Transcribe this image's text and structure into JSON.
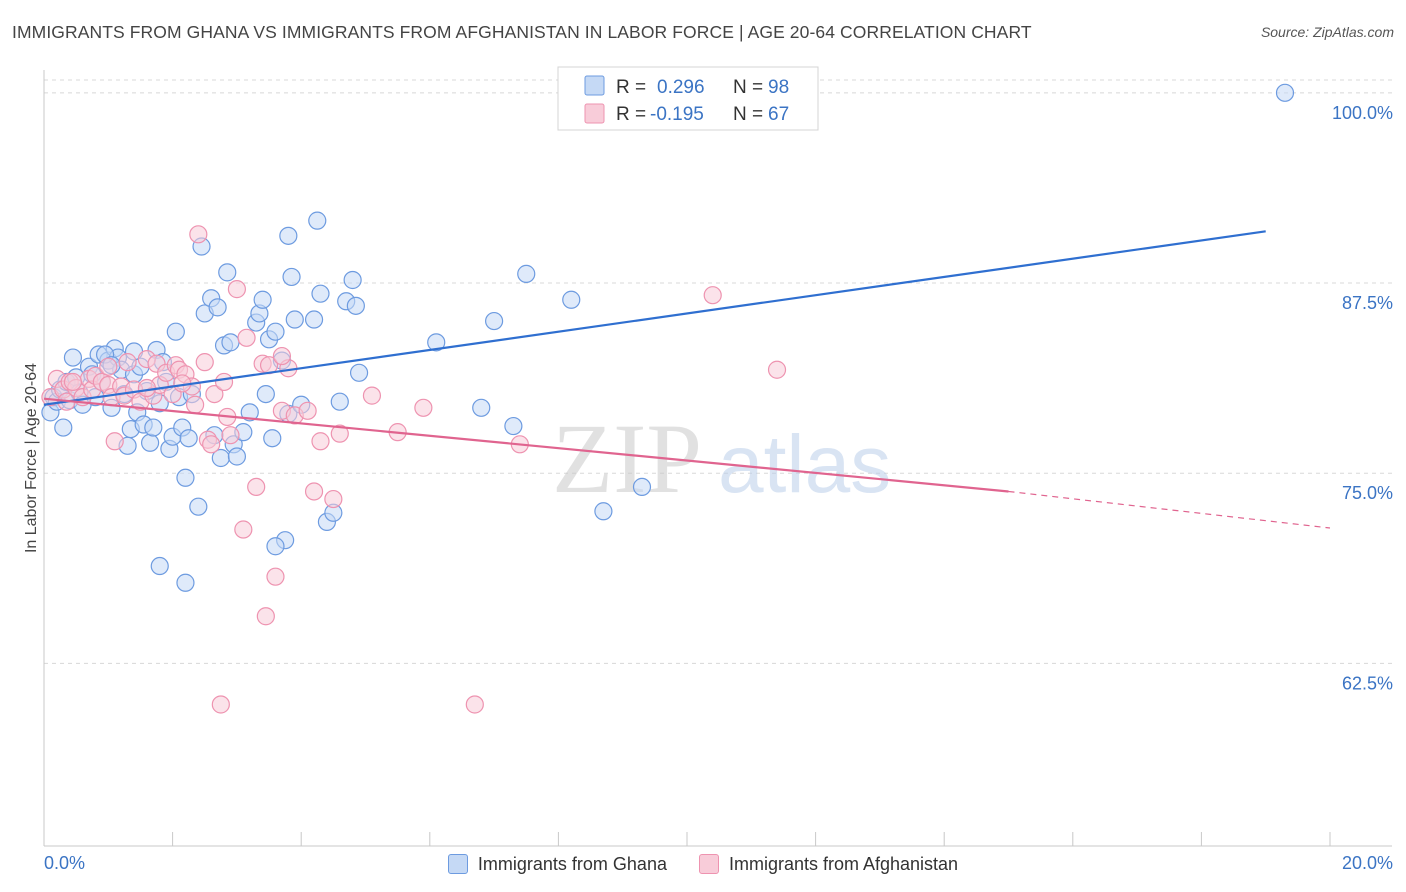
{
  "header": {
    "title": "IMMIGRANTS FROM GHANA VS IMMIGRANTS FROM AFGHANISTAN IN LABOR FORCE | AGE 20-64 CORRELATION CHART",
    "source": "Source: ZipAtlas.com"
  },
  "watermark": {
    "zip": "ZIP",
    "atlas": "atlas"
  },
  "stats": {
    "ghana": {
      "r_label": "R =",
      "r_value": "0.296",
      "n_label": "N =",
      "n_value": "98"
    },
    "afghanistan": {
      "r_label": "R =",
      "r_value": "-0.195",
      "n_label": "N =",
      "n_value": "67"
    }
  },
  "legend": {
    "ghana": "Immigrants from Ghana",
    "afghanistan": "Immigrants from Afghanistan"
  },
  "colors": {
    "ghana_fill": "#c5d9f5",
    "ghana_stroke": "#6d9be0",
    "ghana_line": "#2f6fd0",
    "afghanistan_fill": "#f8ccd9",
    "afghanistan_stroke": "#ee93b0",
    "afghanistan_line": "#e0648f",
    "tick_label": "#3b74c4",
    "grid": "#d8d8d8"
  },
  "chart_data": {
    "type": "scatter",
    "title": "IMMIGRANTS FROM GHANA VS IMMIGRANTS FROM AFGHANISTAN IN LABOR FORCE | AGE 20-64 CORRELATION CHART",
    "xlabel": "",
    "ylabel": "In Labor Force | Age 20-64",
    "xlim": [
      0,
      20
    ],
    "ylim": [
      50.5,
      101.5
    ],
    "x_tick_labels": [
      "0.0%",
      "20.0%"
    ],
    "y_ticks": [
      62.5,
      75.0,
      87.5,
      100.0
    ],
    "y_tick_labels": [
      "62.5%",
      "75.0%",
      "87.5%",
      "100.0%"
    ],
    "grid": true,
    "legend_position": "bottom",
    "series": [
      {
        "name": "Immigrants from Ghana",
        "r": 0.296,
        "n": 98,
        "trend": {
          "x": [
            0.0,
            19.0
          ],
          "y": [
            79.5,
            90.9
          ]
        },
        "points": [
          [
            0.1,
            79.0
          ],
          [
            0.15,
            80.0
          ],
          [
            0.2,
            79.7
          ],
          [
            0.25,
            80.5
          ],
          [
            0.3,
            78.0
          ],
          [
            0.35,
            81.0
          ],
          [
            0.4,
            79.8
          ],
          [
            0.45,
            82.6
          ],
          [
            0.5,
            81.3
          ],
          [
            0.55,
            80.3
          ],
          [
            0.6,
            79.5
          ],
          [
            0.7,
            82.0
          ],
          [
            0.75,
            81.5
          ],
          [
            0.8,
            80.0
          ],
          [
            0.85,
            82.8
          ],
          [
            0.9,
            81.0
          ],
          [
            1.0,
            82.4
          ],
          [
            1.05,
            79.3
          ],
          [
            1.1,
            83.2
          ],
          [
            1.15,
            82.6
          ],
          [
            1.2,
            81.8
          ],
          [
            1.25,
            80.2
          ],
          [
            1.3,
            76.8
          ],
          [
            1.35,
            77.9
          ],
          [
            1.4,
            81.5
          ],
          [
            1.45,
            79.0
          ],
          [
            1.5,
            82.0
          ],
          [
            1.55,
            78.2
          ],
          [
            1.6,
            80.4
          ],
          [
            1.65,
            77.0
          ],
          [
            1.7,
            78.0
          ],
          [
            1.75,
            83.1
          ],
          [
            1.8,
            79.6
          ],
          [
            1.85,
            82.3
          ],
          [
            1.9,
            81.0
          ],
          [
            1.95,
            76.6
          ],
          [
            2.0,
            77.4
          ],
          [
            2.05,
            84.3
          ],
          [
            2.1,
            80.0
          ],
          [
            2.15,
            78.0
          ],
          [
            2.2,
            74.7
          ],
          [
            2.25,
            77.3
          ],
          [
            2.3,
            80.2
          ],
          [
            2.4,
            72.8
          ],
          [
            2.45,
            89.9
          ],
          [
            2.5,
            85.5
          ],
          [
            2.6,
            86.5
          ],
          [
            2.65,
            77.5
          ],
          [
            2.7,
            85.9
          ],
          [
            2.75,
            76.0
          ],
          [
            2.8,
            83.4
          ],
          [
            2.85,
            88.2
          ],
          [
            2.9,
            83.6
          ],
          [
            2.95,
            76.9
          ],
          [
            3.0,
            76.1
          ],
          [
            3.1,
            77.7
          ],
          [
            3.2,
            79.0
          ],
          [
            3.3,
            84.9
          ],
          [
            3.35,
            85.5
          ],
          [
            3.4,
            86.4
          ],
          [
            3.45,
            80.2
          ],
          [
            3.5,
            83.8
          ],
          [
            3.55,
            77.3
          ],
          [
            3.6,
            84.3
          ],
          [
            3.7,
            82.4
          ],
          [
            3.75,
            70.6
          ],
          [
            3.8,
            78.9
          ],
          [
            3.85,
            87.9
          ],
          [
            3.9,
            85.1
          ],
          [
            4.0,
            79.5
          ],
          [
            4.2,
            85.1
          ],
          [
            4.25,
            91.6
          ],
          [
            4.3,
            86.8
          ],
          [
            4.4,
            71.8
          ],
          [
            4.5,
            72.4
          ],
          [
            4.6,
            79.7
          ],
          [
            4.7,
            86.3
          ],
          [
            4.8,
            87.7
          ],
          [
            4.85,
            86.0
          ],
          [
            4.9,
            81.6
          ],
          [
            6.1,
            83.6
          ],
          [
            6.8,
            79.3
          ],
          [
            7.0,
            85.0
          ],
          [
            7.3,
            78.1
          ],
          [
            7.5,
            88.1
          ],
          [
            8.2,
            86.4
          ],
          [
            8.7,
            72.5
          ],
          [
            9.3,
            74.1
          ],
          [
            1.8,
            68.9
          ],
          [
            2.2,
            67.8
          ],
          [
            3.6,
            70.2
          ],
          [
            1.4,
            83.0
          ],
          [
            0.95,
            82.8
          ],
          [
            1.05,
            82.1
          ],
          [
            19.3,
            100.0
          ],
          [
            3.8,
            90.6
          ]
        ]
      },
      {
        "name": "Immigrants from Afghanistan",
        "r": -0.195,
        "n": 67,
        "trend": {
          "x": [
            0.0,
            15.0
          ],
          "y": [
            79.9,
            73.8
          ]
        },
        "trend_dashed": {
          "x": [
            15.0,
            20.0
          ],
          "y": [
            73.8,
            71.4
          ]
        },
        "points": [
          [
            0.1,
            80.0
          ],
          [
            0.2,
            81.2
          ],
          [
            0.3,
            80.5
          ],
          [
            0.35,
            79.7
          ],
          [
            0.4,
            81.0
          ],
          [
            0.5,
            80.6
          ],
          [
            0.6,
            80.0
          ],
          [
            0.7,
            81.2
          ],
          [
            0.75,
            80.5
          ],
          [
            0.8,
            81.4
          ],
          [
            0.9,
            81.0
          ],
          [
            1.0,
            80.8
          ],
          [
            1.05,
            80.0
          ],
          [
            1.1,
            77.1
          ],
          [
            1.2,
            80.7
          ],
          [
            1.25,
            80.1
          ],
          [
            1.3,
            82.3
          ],
          [
            1.4,
            80.5
          ],
          [
            1.5,
            79.7
          ],
          [
            1.6,
            82.5
          ],
          [
            1.7,
            80.1
          ],
          [
            1.75,
            82.2
          ],
          [
            1.8,
            80.8
          ],
          [
            1.9,
            81.6
          ],
          [
            2.0,
            80.2
          ],
          [
            2.05,
            82.1
          ],
          [
            2.1,
            81.8
          ],
          [
            2.2,
            81.5
          ],
          [
            2.3,
            80.7
          ],
          [
            2.35,
            79.5
          ],
          [
            2.4,
            90.7
          ],
          [
            2.5,
            82.3
          ],
          [
            2.55,
            77.2
          ],
          [
            2.6,
            76.9
          ],
          [
            2.65,
            80.2
          ],
          [
            2.8,
            81.0
          ],
          [
            2.85,
            78.7
          ],
          [
            2.9,
            77.5
          ],
          [
            3.0,
            87.1
          ],
          [
            3.1,
            71.3
          ],
          [
            3.15,
            83.9
          ],
          [
            3.3,
            74.1
          ],
          [
            3.4,
            82.2
          ],
          [
            3.5,
            82.1
          ],
          [
            3.6,
            68.2
          ],
          [
            3.7,
            79.1
          ],
          [
            3.8,
            81.9
          ],
          [
            3.9,
            78.8
          ],
          [
            4.1,
            79.1
          ],
          [
            4.2,
            73.8
          ],
          [
            4.3,
            77.1
          ],
          [
            4.5,
            73.3
          ],
          [
            4.6,
            77.6
          ],
          [
            5.1,
            80.1
          ],
          [
            5.5,
            77.7
          ],
          [
            5.9,
            79.3
          ],
          [
            7.4,
            76.9
          ],
          [
            10.4,
            86.7
          ],
          [
            11.4,
            81.8
          ],
          [
            2.75,
            59.8
          ],
          [
            6.7,
            59.8
          ],
          [
            3.45,
            65.6
          ],
          [
            1.6,
            80.6
          ],
          [
            1.0,
            82.0
          ],
          [
            2.15,
            80.9
          ],
          [
            0.45,
            81.0
          ],
          [
            3.7,
            82.7
          ]
        ]
      }
    ]
  }
}
